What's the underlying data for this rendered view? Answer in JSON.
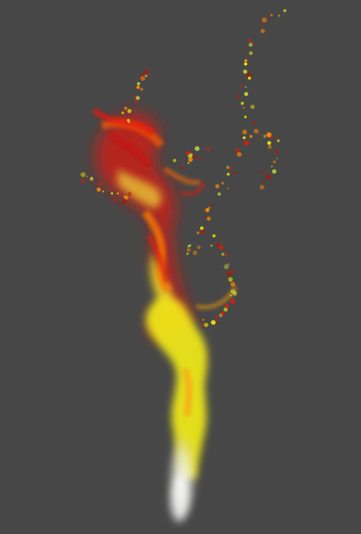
{
  "scene": {
    "subject": "particle-fire-plume",
    "background_color": "#474747",
    "palette": {
      "white_core": "#f4f4f0",
      "yellow": "#f2f000",
      "yellow_green": "#c8d23a",
      "orange": "#ff8a00",
      "red": "#e01a0a",
      "dark_red": "#a8180c"
    }
  }
}
